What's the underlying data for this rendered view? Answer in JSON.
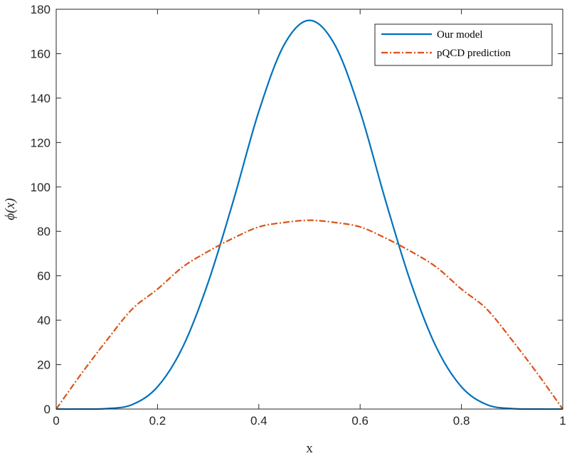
{
  "chart_data": {
    "type": "line",
    "title": "",
    "xlabel": "x",
    "ylabel": "ϕ(x)",
    "xlim": [
      0,
      1
    ],
    "ylim": [
      0,
      180
    ],
    "xticks": [
      0,
      0.2,
      0.4,
      0.6,
      0.8,
      1
    ],
    "xtick_labels": [
      "0",
      "0.2",
      "0.4",
      "0.6",
      "0.8",
      "1"
    ],
    "yticks": [
      0,
      20,
      40,
      60,
      80,
      100,
      120,
      140,
      160,
      180
    ],
    "ytick_labels": [
      "0",
      "20",
      "40",
      "60",
      "80",
      "100",
      "120",
      "140",
      "160",
      "180"
    ],
    "grid": false,
    "legend_position": "top-right",
    "series": [
      {
        "name": "Our model",
        "color": "#0072BD",
        "line_style": "solid",
        "x": [
          0,
          0.05,
          0.1,
          0.15,
          0.2,
          0.25,
          0.3,
          0.35,
          0.4,
          0.45,
          0.5,
          0.55,
          0.6,
          0.65,
          0.7,
          0.75,
          0.8,
          0.85,
          0.9,
          0.95,
          1
        ],
        "y": [
          0,
          0,
          0.2,
          2,
          10,
          28,
          57,
          94,
          134,
          164,
          175,
          164,
          134,
          94,
          57,
          28,
          10,
          2,
          0.2,
          0,
          0
        ]
      },
      {
        "name": "pQCD prediction",
        "color": "#D95319",
        "line_style": "dashdot",
        "x": [
          0,
          0.05,
          0.1,
          0.15,
          0.2,
          0.25,
          0.3,
          0.35,
          0.4,
          0.45,
          0.5,
          0.55,
          0.6,
          0.65,
          0.7,
          0.75,
          0.8,
          0.85,
          0.9,
          0.95,
          1
        ],
        "y": [
          0,
          16,
          31,
          45,
          54,
          64,
          71,
          77,
          82,
          84,
          85,
          84,
          82,
          77,
          71,
          64,
          54,
          45,
          31,
          16,
          0
        ]
      }
    ]
  }
}
